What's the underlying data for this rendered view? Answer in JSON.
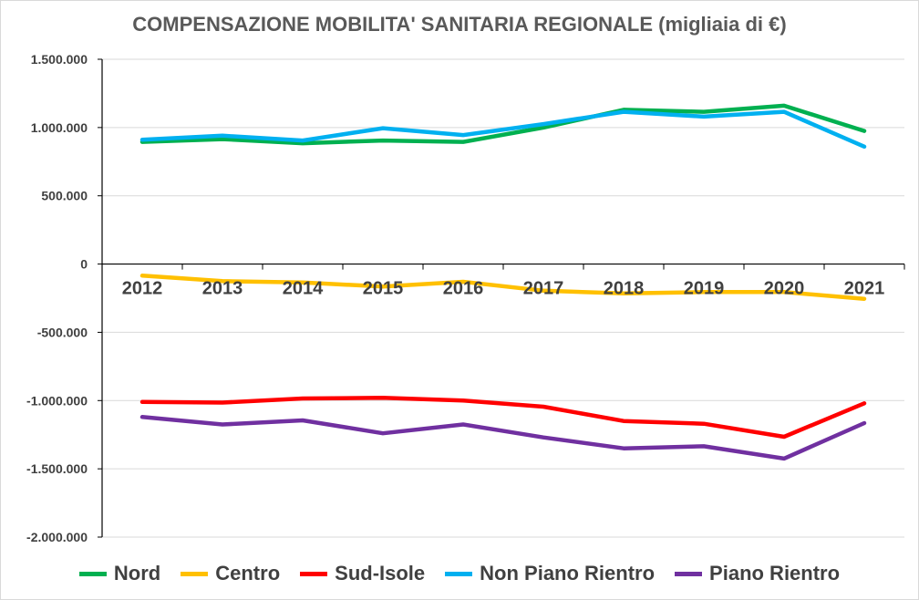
{
  "chart_data": {
    "type": "line",
    "title": "COMPENSAZIONE MOBILITA' SANITARIA REGIONALE (migliaia di €)",
    "xlabel": "",
    "ylabel": "",
    "categories": [
      "2012",
      "2013",
      "2014",
      "2015",
      "2016",
      "2017",
      "2018",
      "2019",
      "2020",
      "2021"
    ],
    "ylim": [
      -2000000,
      1500000
    ],
    "yticks": [
      1500000,
      1000000,
      500000,
      0,
      -500000,
      -1000000,
      -1500000,
      -2000000
    ],
    "ytick_labels": [
      "1.500.000",
      "1.000.000",
      "500.000",
      "0",
      "-500.000",
      "-1.000.000",
      "-1.500.000",
      "-2.000.000"
    ],
    "grid": true,
    "legend_position": "bottom",
    "series": [
      {
        "name": "Nord",
        "color": "#00b050",
        "values": [
          895000,
          915000,
          885000,
          905000,
          895000,
          1000000,
          1130000,
          1115000,
          1160000,
          975000
        ]
      },
      {
        "name": "Centro",
        "color": "#ffc000",
        "values": [
          -85000,
          -125000,
          -135000,
          -165000,
          -130000,
          -195000,
          -215000,
          -205000,
          -205000,
          -255000
        ]
      },
      {
        "name": "Sud-Isole",
        "color": "#ff0000",
        "values": [
          -1010000,
          -1015000,
          -985000,
          -980000,
          -1000000,
          -1045000,
          -1150000,
          -1170000,
          -1265000,
          -1020000
        ]
      },
      {
        "name": "Non Piano Rientro",
        "color": "#00b0f0",
        "values": [
          910000,
          940000,
          905000,
          995000,
          945000,
          1025000,
          1115000,
          1080000,
          1115000,
          860000
        ]
      },
      {
        "name": "Piano Rientro",
        "color": "#7030a0",
        "values": [
          -1120000,
          -1175000,
          -1145000,
          -1240000,
          -1175000,
          -1270000,
          -1350000,
          -1335000,
          -1425000,
          -1165000
        ]
      }
    ]
  }
}
